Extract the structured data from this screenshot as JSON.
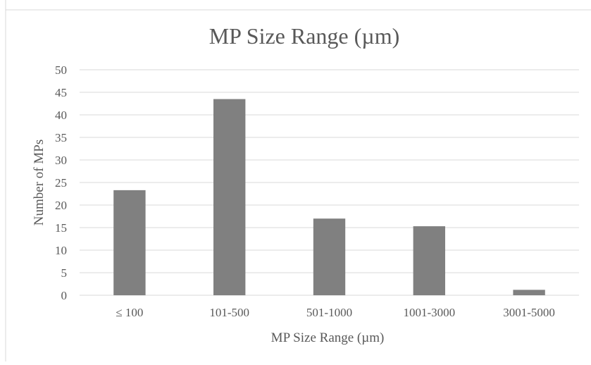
{
  "chart_data": {
    "type": "bar",
    "title": "MP Size Range (µm)",
    "xlabel": "MP Size Range (µm)",
    "ylabel": "Number of MPs",
    "categories": [
      "≤ 100",
      "101-500",
      "501-1000",
      "1001-3000",
      "3001-5000"
    ],
    "values": [
      23.3,
      43.5,
      17,
      15.3,
      1.2
    ],
    "ylim": [
      0,
      50
    ],
    "yticks": [
      0,
      5,
      10,
      15,
      20,
      25,
      30,
      35,
      40,
      45,
      50
    ],
    "grid": true,
    "legend": "none",
    "bar_color": "#808080",
    "grid_color": "#d9d9d9",
    "text_color": "#595959"
  }
}
